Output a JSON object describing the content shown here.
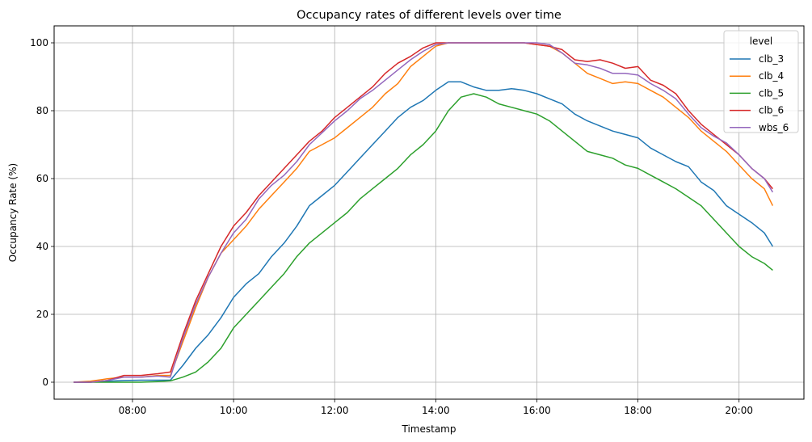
{
  "chart_data": {
    "type": "line",
    "title": "Occupancy rates of different levels over time",
    "xlabel": "Timestamp",
    "ylabel": "Occupancy Rate (%)",
    "x_ticks": [
      "08:00",
      "10:00",
      "12:00",
      "14:00",
      "16:00",
      "18:00",
      "20:00"
    ],
    "y_ticks": [
      0,
      20,
      40,
      60,
      80,
      100
    ],
    "xlim": [
      "06:27",
      "21:17"
    ],
    "ylim": [
      -5,
      105
    ],
    "grid": true,
    "legend": {
      "title": "level",
      "placement": "top-right"
    },
    "x": [
      "06:50",
      "07:10",
      "07:30",
      "07:50",
      "08:10",
      "08:30",
      "08:45",
      "09:00",
      "09:15",
      "09:30",
      "09:45",
      "10:00",
      "10:15",
      "10:30",
      "10:45",
      "11:00",
      "11:15",
      "11:30",
      "11:45",
      "12:00",
      "12:15",
      "12:30",
      "12:45",
      "13:00",
      "13:15",
      "13:30",
      "13:45",
      "14:00",
      "14:15",
      "14:30",
      "14:45",
      "15:00",
      "15:15",
      "15:30",
      "15:45",
      "16:00",
      "16:15",
      "16:30",
      "16:45",
      "17:00",
      "17:15",
      "17:30",
      "17:45",
      "18:00",
      "18:15",
      "18:30",
      "18:45",
      "19:00",
      "19:15",
      "19:30",
      "19:45",
      "20:00",
      "20:15",
      "20:30",
      "20:40"
    ],
    "series": [
      {
        "name": "clb_3",
        "color": "#1f77b4",
        "values": [
          0,
          0,
          0.3,
          0.5,
          0.6,
          0.6,
          0.6,
          5,
          10,
          14,
          19,
          25,
          29,
          32,
          37,
          41,
          46,
          52,
          55,
          58,
          62,
          66,
          70,
          74,
          78,
          81,
          83,
          86,
          88.5,
          88.5,
          87,
          86,
          86,
          86.5,
          86,
          85,
          83.5,
          82,
          79,
          77,
          75.5,
          74,
          73,
          72,
          69,
          67,
          65,
          63.5,
          59,
          56.5,
          52,
          49.5,
          47,
          44,
          40
        ]
      },
      {
        "name": "clb_4",
        "color": "#ff7f0e",
        "values": [
          0,
          0.3,
          1,
          1.5,
          1.5,
          2,
          2,
          12,
          22,
          31,
          38,
          42,
          46,
          51,
          55,
          59,
          63,
          68,
          70,
          72,
          75,
          78,
          81,
          85,
          88,
          93,
          96,
          99,
          100,
          100,
          100,
          100,
          100,
          100,
          100,
          99.5,
          99,
          97,
          94,
          91,
          89.5,
          88,
          88.5,
          88,
          86,
          84,
          81,
          78,
          74,
          71,
          68,
          64,
          60,
          57,
          52
        ]
      },
      {
        "name": "clb_5",
        "color": "#2ca02c",
        "values": [
          0,
          0,
          0,
          0,
          0,
          0.2,
          0.4,
          1.5,
          3,
          6,
          10,
          16,
          20,
          24,
          28,
          32,
          37,
          41,
          44,
          47,
          50,
          54,
          57,
          60,
          63,
          67,
          70,
          74,
          80,
          84,
          85,
          84,
          82,
          81,
          80,
          79,
          77,
          74,
          71,
          68,
          67,
          66,
          64,
          63,
          61,
          59,
          57,
          54.5,
          52,
          48,
          44,
          40,
          37,
          35,
          33
        ]
      },
      {
        "name": "clb_6",
        "color": "#d62728",
        "values": [
          0,
          0,
          0.5,
          2,
          2,
          2.5,
          3,
          14,
          24,
          32,
          40,
          46,
          50,
          55,
          59,
          63,
          67,
          71,
          74,
          78,
          81,
          84,
          87,
          91,
          94,
          96,
          98.5,
          100,
          100,
          100,
          100,
          100,
          100,
          100,
          100,
          99.5,
          99,
          98,
          95,
          94.5,
          95,
          94,
          92.5,
          93,
          89,
          87.5,
          85,
          80,
          76,
          73,
          70,
          67,
          63,
          60,
          57
        ]
      },
      {
        "name": "wbs_6",
        "color": "#9467bd",
        "values": [
          0,
          0,
          0.5,
          1.5,
          1.5,
          1.8,
          1.5,
          13,
          23,
          31,
          38,
          44,
          48,
          54,
          58,
          61,
          65,
          70,
          73.5,
          77,
          80,
          83.5,
          86,
          89,
          92,
          95,
          97.5,
          99.5,
          100,
          100,
          100,
          100,
          100,
          100,
          100,
          100,
          99.5,
          97,
          94,
          93.5,
          92.5,
          91,
          91,
          90.5,
          88,
          86,
          83.5,
          79,
          75,
          72.5,
          70.5,
          67,
          63,
          60,
          56
        ]
      }
    ]
  }
}
